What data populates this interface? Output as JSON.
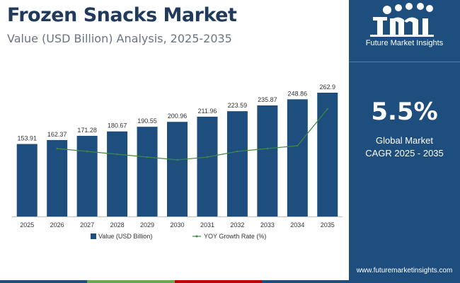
{
  "header": {
    "title": "Frozen Snacks Market",
    "subtitle": "Value (USD Billion) Analysis, 2025-2035"
  },
  "panel": {
    "logo_text": "Future Market Insights",
    "logo_icon": "fmi-logo-icon",
    "cagr_value": "5.5%",
    "cagr_label_line1": "Global Market",
    "cagr_label_line2": "CAGR 2025 - 2035",
    "website": "www.futuremarketinsights.com"
  },
  "colors": {
    "bar": "#1d4e7e",
    "line": "#3f8a3f",
    "panel": "#1d4e7e",
    "bottom_bar": [
      "#1d4e7e",
      "#6aa84f",
      "#c00000",
      "#1d4e7e"
    ]
  },
  "chart_data": {
    "type": "bar",
    "categories": [
      "2025",
      "2026",
      "2027",
      "2028",
      "2029",
      "2030",
      "2031",
      "2032",
      "2033",
      "2034",
      "2035"
    ],
    "series": [
      {
        "name": "Value (USD Billion)",
        "type": "bar",
        "values": [
          153.91,
          162.37,
          171.28,
          180.67,
          190.55,
          200.96,
          211.96,
          223.59,
          235.87,
          248.86,
          262.9
        ],
        "labels": [
          "153.91",
          "162.37",
          "171.28",
          "180.67",
          "190.55",
          "200.96",
          "211.96",
          "223.59",
          "235.87",
          "248.86",
          "262.9"
        ]
      },
      {
        "name": "YOY Growth Rate (%)",
        "type": "line",
        "values": [
          null,
          5.5,
          5.49,
          5.48,
          5.47,
          5.46,
          5.47,
          5.49,
          5.5,
          5.51,
          5.64
        ]
      }
    ],
    "legend_position": "bottom",
    "grid": false,
    "ylim": [
      0,
      270
    ]
  }
}
